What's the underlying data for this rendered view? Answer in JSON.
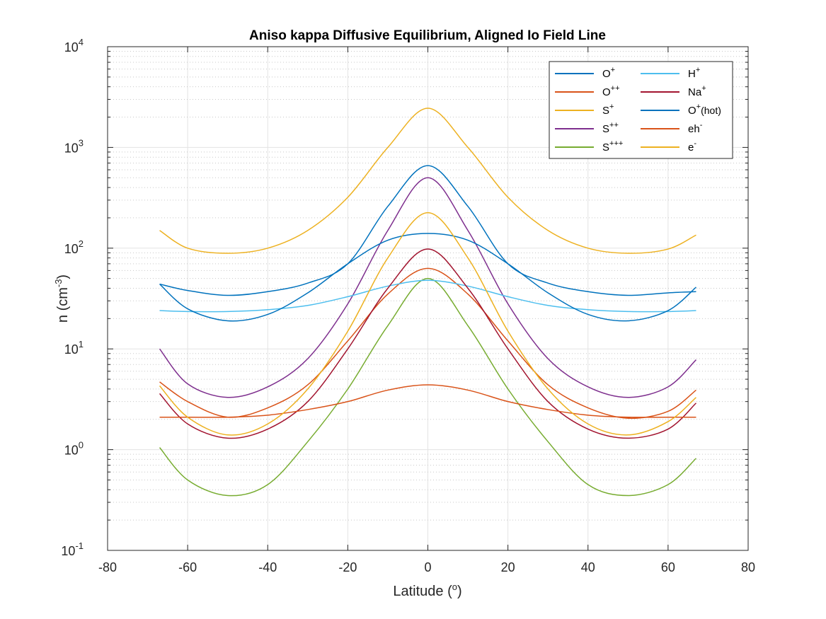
{
  "chart_data": {
    "type": "line",
    "title": "Aniso kappa Diffusive Equilibrium, Aligned Io Field Line",
    "xlabel": {
      "main": "Latitude (",
      "sup": "o",
      "end": ")"
    },
    "ylabel": {
      "main": "n (cm",
      "sup": "-3",
      "end": ")"
    },
    "xlim": [
      -80,
      80
    ],
    "ylim": [
      0.1,
      10000
    ],
    "yscale": "log",
    "grid": true,
    "legend_placement": "top-right",
    "x_ticks": [
      "-80",
      "-60",
      "-40",
      "-20",
      "0",
      "20",
      "40",
      "60",
      "80"
    ],
    "y_ticks": [
      {
        "base": "10",
        "exp": "-1"
      },
      {
        "base": "10",
        "exp": "0"
      },
      {
        "base": "10",
        "exp": "1"
      },
      {
        "base": "10",
        "exp": "2"
      },
      {
        "base": "10",
        "exp": "3"
      },
      {
        "base": "10",
        "exp": "4"
      }
    ],
    "series": [
      {
        "name": "O",
        "sup": "+",
        "sub": "",
        "color": "#0072BD",
        "x": [
          -67,
          -60,
          -50,
          -40,
          -30,
          -20,
          -10,
          0,
          10,
          20,
          30,
          40,
          50,
          60,
          67
        ],
        "y": [
          44,
          38,
          34,
          37,
          45,
          70,
          260,
          660,
          260,
          70,
          45,
          37,
          34,
          36,
          37
        ]
      },
      {
        "name": "O",
        "sup": "++",
        "sub": "",
        "color": "#D95319",
        "x": [
          -67,
          -60,
          -50,
          -40,
          -30,
          -20,
          -10,
          0,
          10,
          20,
          30,
          40,
          50,
          60,
          67
        ],
        "y": [
          4.7,
          3.0,
          2.1,
          2.6,
          4.4,
          12,
          35,
          63,
          35,
          12,
          4.4,
          2.6,
          2.05,
          2.4,
          3.9
        ]
      },
      {
        "name": "S",
        "sup": "+",
        "sub": "",
        "color": "#EDB120",
        "x": [
          -67,
          -60,
          -50,
          -40,
          -30,
          -20,
          -10,
          0,
          10,
          20,
          30,
          40,
          50,
          60,
          67
        ],
        "y": [
          150,
          100,
          89,
          100,
          150,
          320,
          1000,
          2450,
          1000,
          320,
          150,
          100,
          89,
          98,
          135
        ]
      },
      {
        "name": "S",
        "sup": "++",
        "sub": "",
        "color": "#7E2F8E",
        "x": [
          -67,
          -60,
          -50,
          -40,
          -30,
          -20,
          -10,
          0,
          10,
          20,
          30,
          40,
          50,
          60,
          67
        ],
        "y": [
          10,
          4.5,
          3.3,
          4.2,
          8,
          28,
          150,
          500,
          150,
          28,
          8,
          4.2,
          3.3,
          4.2,
          7.8
        ]
      },
      {
        "name": "S",
        "sup": "+++",
        "sub": "",
        "color": "#77AC30",
        "x": [
          -67,
          -60,
          -50,
          -40,
          -30,
          -20,
          -10,
          0,
          10,
          20,
          30,
          40,
          50,
          60,
          67
        ],
        "y": [
          1.05,
          0.5,
          0.35,
          0.45,
          1.2,
          4,
          17,
          50,
          17,
          4,
          1.2,
          0.45,
          0.35,
          0.45,
          0.82
        ]
      },
      {
        "name": "H",
        "sup": "+",
        "sub": "",
        "color": "#4DBEEE",
        "x": [
          -67,
          -60,
          -50,
          -40,
          -30,
          -20,
          -10,
          0,
          10,
          20,
          30,
          40,
          50,
          60,
          67
        ],
        "y": [
          24,
          23.5,
          23.5,
          24.5,
          27,
          33,
          42,
          48,
          42,
          33,
          27,
          24.5,
          23.5,
          23.5,
          24
        ]
      },
      {
        "name": "Na",
        "sup": "+",
        "sub": "",
        "color": "#A2142F",
        "x": [
          -67,
          -60,
          -50,
          -40,
          -30,
          -20,
          -10,
          0,
          10,
          20,
          30,
          40,
          50,
          60,
          67
        ],
        "y": [
          3.6,
          1.8,
          1.3,
          1.6,
          3.0,
          10,
          40,
          98,
          40,
          10,
          3.0,
          1.6,
          1.3,
          1.6,
          2.9
        ]
      },
      {
        "name": "O",
        "sup": "+",
        "sub": "(hot)",
        "color": "#0072BD",
        "x": [
          -67,
          -60,
          -50,
          -40,
          -30,
          -20,
          -10,
          0,
          10,
          20,
          30,
          40,
          50,
          60,
          67
        ],
        "y": [
          44,
          25,
          19,
          22,
          36,
          70,
          120,
          140,
          120,
          70,
          36,
          22,
          19,
          24,
          41
        ]
      },
      {
        "name": "eh",
        "sup": "-",
        "sub": "",
        "color": "#D95319",
        "x": [
          -67,
          -60,
          -50,
          -40,
          -30,
          -20,
          -10,
          0,
          10,
          20,
          30,
          40,
          50,
          60,
          67
        ],
        "y": [
          2.1,
          2.1,
          2.1,
          2.2,
          2.5,
          3.0,
          3.9,
          4.4,
          3.9,
          3.0,
          2.5,
          2.2,
          2.1,
          2.1,
          2.1
        ]
      },
      {
        "name": "e",
        "sup": "-",
        "sub": "",
        "color": "#EDB120",
        "x": [
          -67,
          -60,
          -50,
          -40,
          -30,
          -20,
          -10,
          0,
          10,
          20,
          30,
          40,
          50,
          60,
          67
        ],
        "y": [
          4.3,
          2.1,
          1.4,
          1.8,
          4,
          15,
          80,
          225,
          80,
          15,
          4,
          1.8,
          1.4,
          1.9,
          3.3
        ]
      }
    ]
  }
}
